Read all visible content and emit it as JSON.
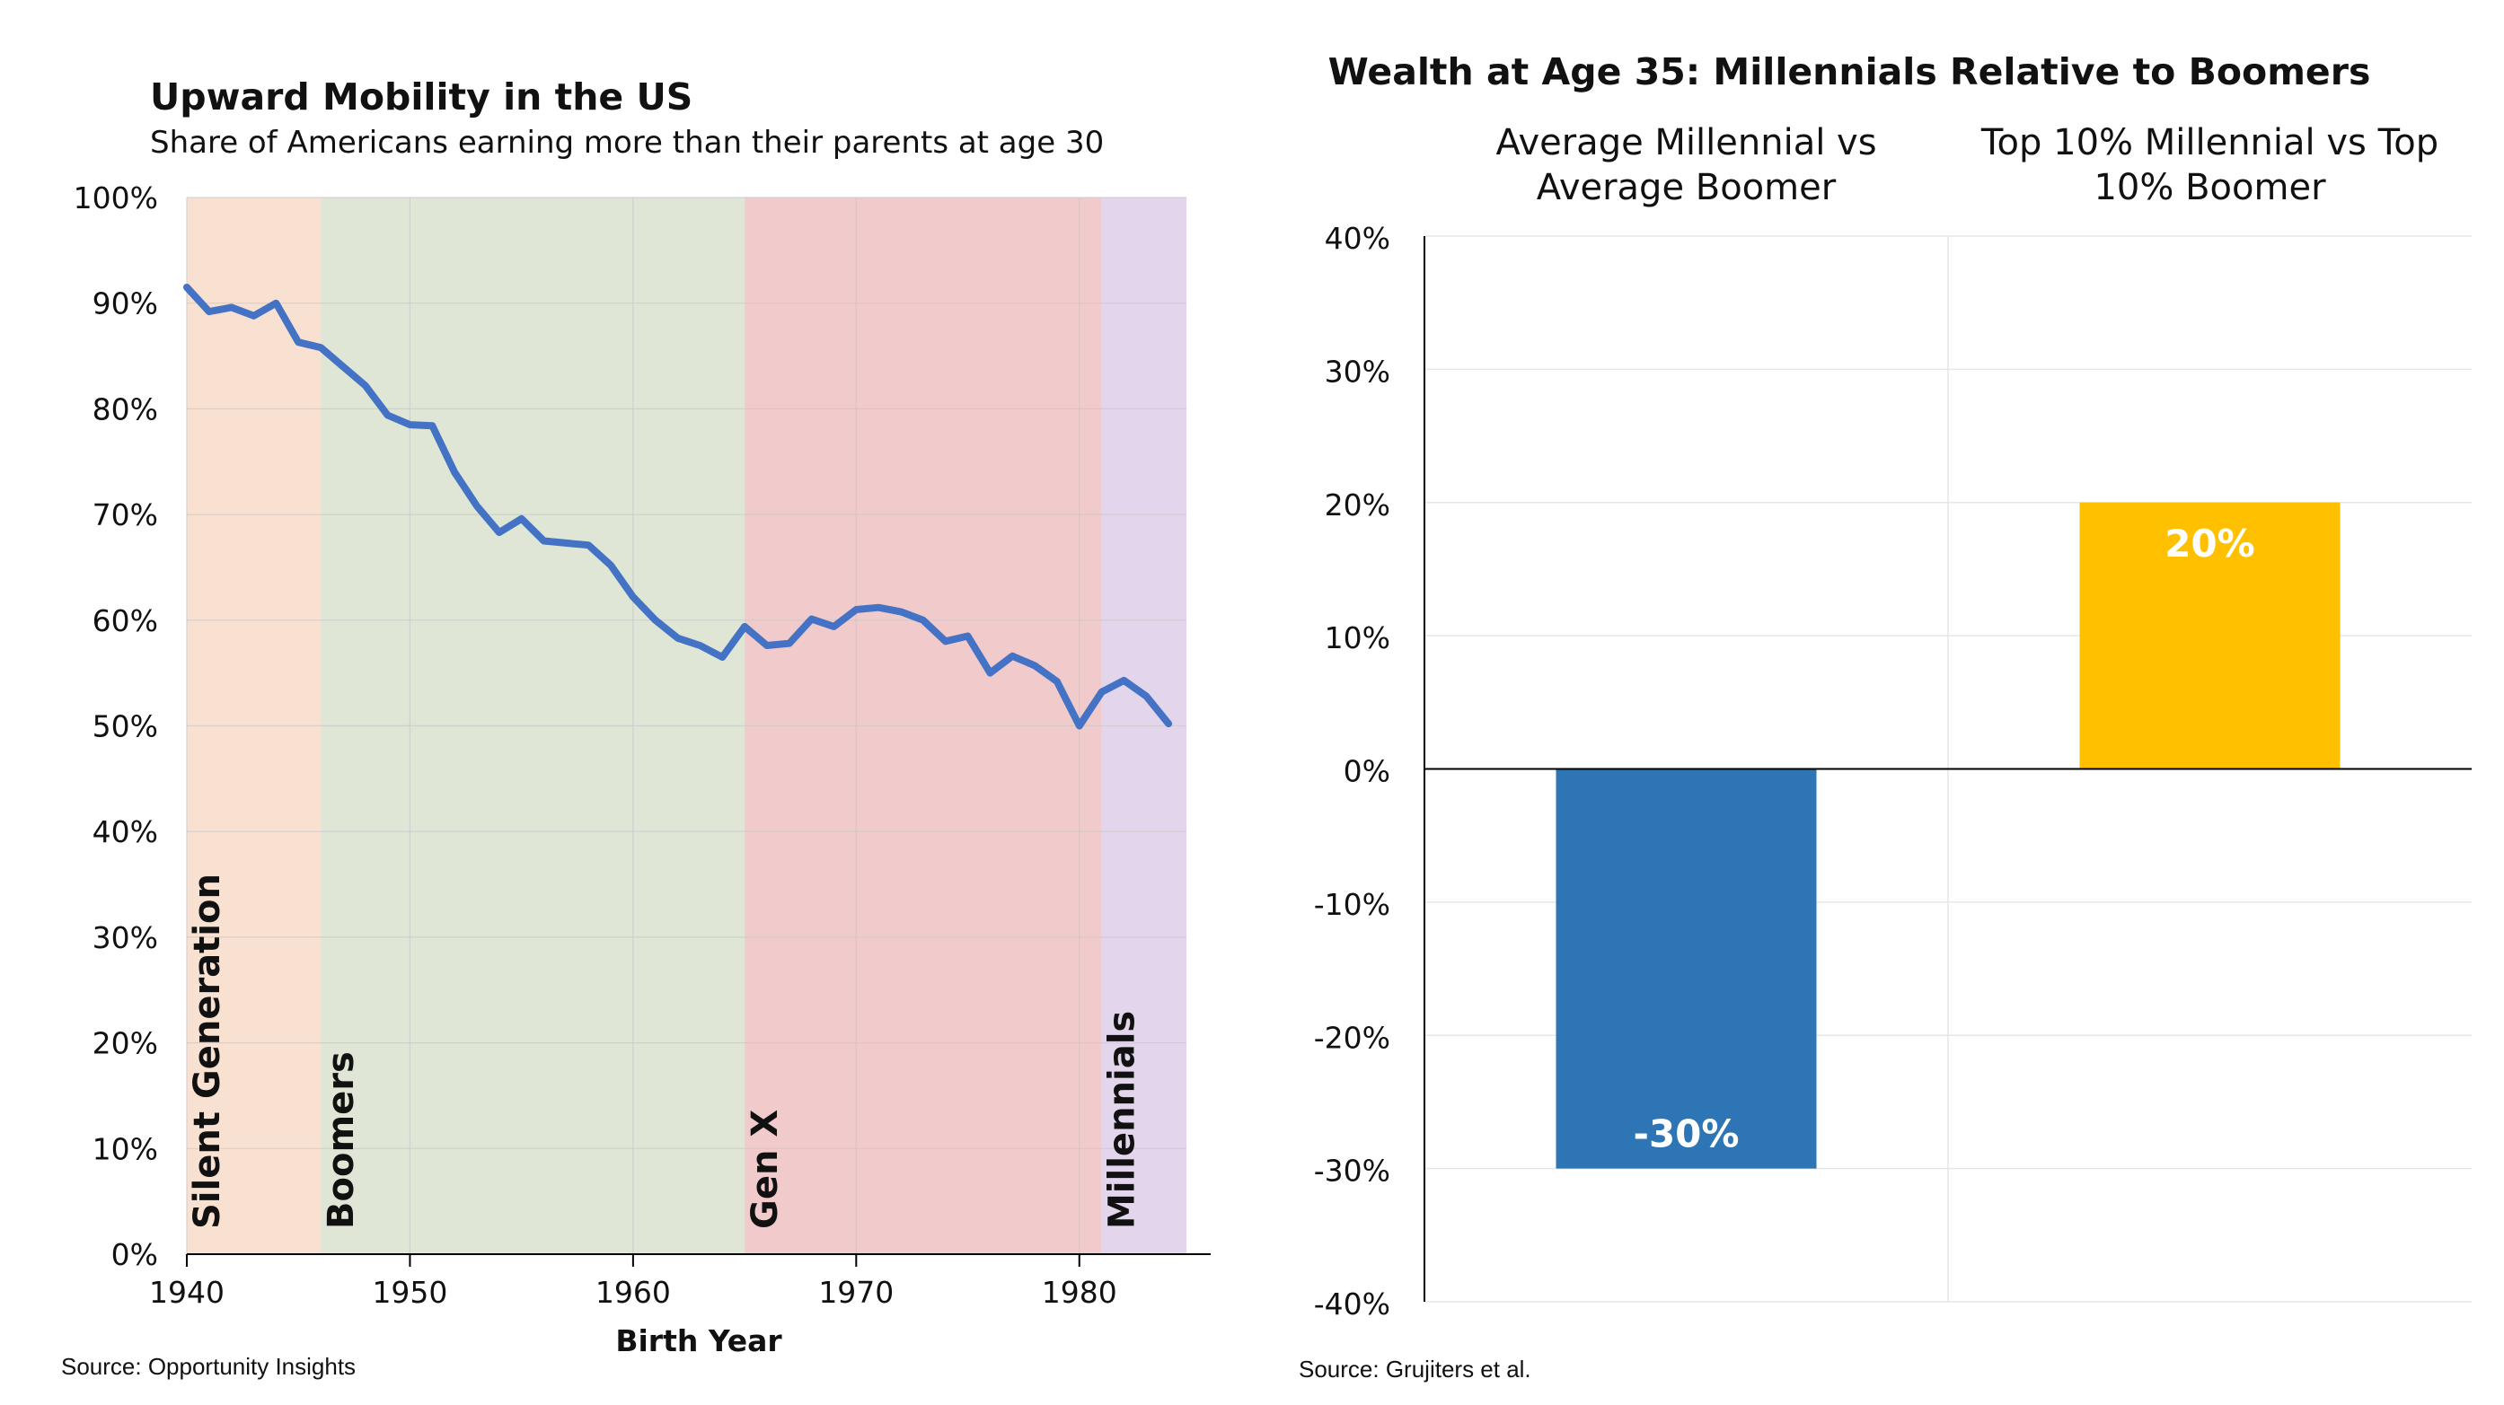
{
  "chart_data": [
    {
      "type": "line",
      "title": "Upward Mobility in the US",
      "subtitle": "Share of Americans earning more than their parents at age 30",
      "xlabel": "Birth Year",
      "ylabel": "",
      "xlim": [
        1940,
        1985
      ],
      "ylim": [
        0,
        100
      ],
      "x_ticks": [
        "1940",
        "1950",
        "1960",
        "1970",
        "1980"
      ],
      "y_ticks": [
        "0%",
        "10%",
        "20%",
        "30%",
        "40%",
        "50%",
        "60%",
        "70%",
        "80%",
        "90%",
        "100%"
      ],
      "grid": true,
      "line_color": "#4472C4",
      "generations": [
        {
          "label": "Silent Generation",
          "start": 1940,
          "end": 1946,
          "color": "#F9E1D2"
        },
        {
          "label": "Boomers",
          "start": 1946,
          "end": 1965,
          "color": "#DFE6D6"
        },
        {
          "label": "Gen X",
          "start": 1965,
          "end": 1981,
          "color": "#F1CACB"
        },
        {
          "label": "Millennials",
          "start": 1981,
          "end": 1985,
          "color": "#E3D6EC"
        }
      ],
      "series": [
        {
          "x": [
            1940,
            1941,
            1942,
            1943,
            1944,
            1945,
            1946,
            1947,
            1948,
            1949,
            1950,
            1951,
            1952,
            1953,
            1954,
            1955,
            1956,
            1957,
            1958,
            1959,
            1960,
            1961,
            1962,
            1963,
            1964,
            1965,
            1966,
            1967,
            1968,
            1969,
            1970,
            1971,
            1972,
            1973,
            1974,
            1975,
            1976,
            1977,
            1978,
            1979,
            1980,
            1981,
            1982,
            1983,
            1984
          ],
          "values": [
            91.5,
            89.2,
            89.6,
            88.8,
            90.0,
            86.3,
            85.8,
            84.0,
            82.2,
            79.4,
            78.5,
            78.4,
            74.0,
            70.8,
            68.3,
            69.6,
            67.5,
            67.3,
            67.1,
            65.2,
            62.2,
            60.0,
            58.3,
            57.6,
            56.5,
            59.4,
            57.6,
            57.8,
            60.1,
            59.4,
            61.0,
            61.2,
            60.8,
            60.0,
            58.0,
            58.5,
            55.0,
            56.6,
            55.7,
            54.2,
            50.0,
            53.2,
            54.3,
            52.8,
            50.2
          ]
        }
      ],
      "source": "Source: Opportunity Insights"
    },
    {
      "type": "bar",
      "title": "Wealth at Age 35: Millennials Relative to Boomers",
      "categories": [
        "Average Millennial vs Average Boomer",
        "Top 10% Millennial vs Top 10% Boomer"
      ],
      "category_label_lines": [
        [
          "Average Millennial vs",
          "Average Boomer"
        ],
        [
          "Top 10% Millennial vs Top",
          "10% Boomer"
        ]
      ],
      "values": [
        -30,
        20
      ],
      "value_labels": [
        "-30%",
        "20%"
      ],
      "colors": [
        "#2E75B6",
        "#FFC000"
      ],
      "ylim": [
        -40,
        40
      ],
      "y_ticks": [
        "-40%",
        "-30%",
        "-20%",
        "-10%",
        "0%",
        "10%",
        "20%",
        "30%",
        "40%"
      ],
      "grid": true,
      "source": "Source: Grujiters et al."
    }
  ]
}
